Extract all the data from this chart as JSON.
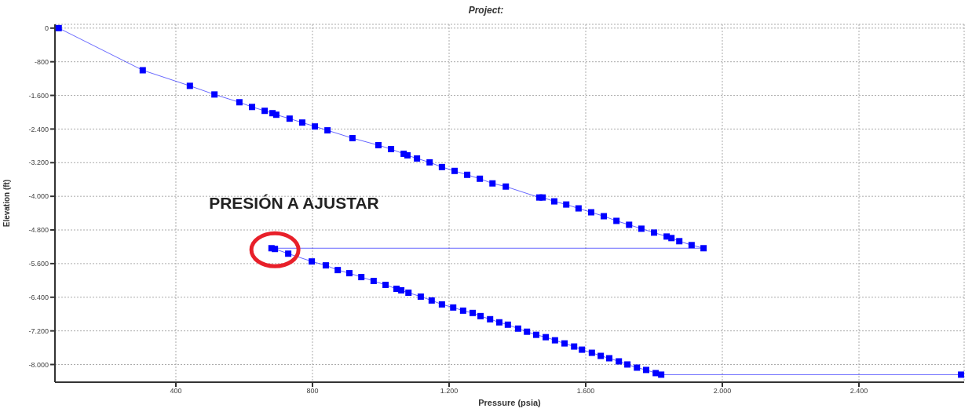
{
  "chart_data": {
    "type": "line",
    "title": "Project:",
    "xlabel": "Pressure (psia)",
    "ylabel": "Elevation (ft)",
    "x": [
      57,
      303,
      441,
      513,
      586,
      623,
      660,
      683,
      694,
      733,
      770,
      807,
      844,
      917,
      993,
      1030,
      1067,
      1078,
      1106,
      1143,
      1179,
      1216,
      1253,
      1290,
      1327,
      1366,
      1464,
      1474,
      1508,
      1543,
      1579,
      1616,
      1653,
      1690,
      1727,
      1763,
      1800,
      1837,
      1851,
      1874,
      1910,
      1945,
      680,
      690,
      729,
      798,
      839,
      874,
      908,
      943,
      979,
      1014,
      1046,
      1060,
      1081,
      1117,
      1149,
      1179,
      1212,
      1241,
      1269,
      1292,
      1320,
      1347,
      1372,
      1402,
      1428,
      1455,
      1483,
      1510,
      1538,
      1566,
      1589,
      1618,
      1644,
      1669,
      1697,
      1722,
      1750,
      1777,
      1805,
      1821,
      2699
    ],
    "series": [
      {
        "color": "#0000ff",
        "values": [
          0,
          -1002,
          -1373,
          -1578,
          -1763,
          -1875,
          -1967,
          -2023,
          -2060,
          -2153,
          -2246,
          -2339,
          -2431,
          -2617,
          -2784,
          -2877,
          -2988,
          -3025,
          -3100,
          -3192,
          -3304,
          -3396,
          -3489,
          -3582,
          -3693,
          -3768,
          -4028,
          -4028,
          -4120,
          -4195,
          -4287,
          -4380,
          -4473,
          -4584,
          -4677,
          -4770,
          -4863,
          -4956,
          -4993,
          -5067,
          -5160,
          -5234,
          -5234,
          -5252,
          -5364,
          -5549,
          -5642,
          -5754,
          -5828,
          -5921,
          -6013,
          -6106,
          -6199,
          -6236,
          -6292,
          -6385,
          -6477,
          -6570,
          -6644,
          -6719,
          -6774,
          -6849,
          -6923,
          -6997,
          -7053,
          -7146,
          -7220,
          -7294,
          -7350,
          -7424,
          -7498,
          -7572,
          -7647,
          -7721,
          -7795,
          -7851,
          -7925,
          -7999,
          -8074,
          -8129,
          -8204,
          -8241,
          -8241
        ]
      }
    ],
    "xlim": [
      46,
      2708
    ],
    "xticks": [
      400,
      800,
      {
        "value": 1200,
        "label": "1.200"
      },
      {
        "value": 1600,
        "label": "1.600"
      },
      {
        "value": 2000,
        "label": "2.000"
      },
      {
        "value": 2400,
        "label": "2.400"
      }
    ],
    "ylim": [
      -8420,
      90
    ],
    "yticks": [
      0,
      -800,
      {
        "value": -1600,
        "label": "-1.600"
      },
      {
        "value": -2400,
        "label": "-2.400"
      },
      {
        "value": -3200,
        "label": "-3.200"
      },
      {
        "value": -4000,
        "label": "-4.000"
      },
      {
        "value": -4800,
        "label": "-4.800"
      },
      {
        "value": -5600,
        "label": "-5.600"
      },
      {
        "value": -6400,
        "label": "-6.400"
      },
      {
        "value": -7200,
        "label": "-7.200"
      },
      {
        "value": -8000,
        "label": "-8.000"
      }
    ],
    "annotations": [
      {
        "text": "PRESIÓN A AJUSTAR",
        "x": 690,
        "y": -5234
      }
    ],
    "grid": true,
    "marker": "square",
    "line_style": "solid",
    "legend": false
  }
}
